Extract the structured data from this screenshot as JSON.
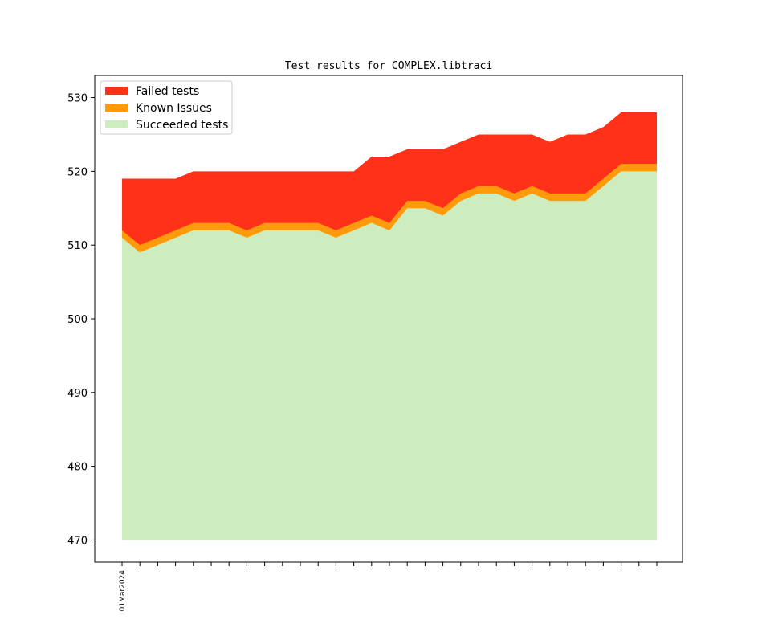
{
  "chart_data": {
    "type": "area",
    "stacked": true,
    "title": "Test results for COMPLEX.libtraci",
    "xlabel": "",
    "ylabel": "",
    "ylim": [
      467,
      533
    ],
    "yticks": [
      470,
      480,
      490,
      500,
      510,
      520,
      530
    ],
    "x_start_label": "01Mar2024",
    "x_count": 31,
    "grid": false,
    "legend_position": "top-left",
    "series": [
      {
        "name": "Failed tests",
        "color": "#ff3219",
        "top": [
          519,
          519,
          519,
          519,
          520,
          520,
          520,
          520,
          520,
          520,
          520,
          520,
          520,
          520,
          522,
          522,
          523,
          523,
          523,
          524,
          525,
          525,
          525,
          525,
          524,
          525,
          525,
          526,
          528,
          528,
          528
        ]
      },
      {
        "name": "Known Issues",
        "color": "#ff9b0a",
        "top": [
          512,
          510,
          511,
          512,
          513,
          513,
          513,
          512,
          513,
          513,
          513,
          513,
          512,
          513,
          514,
          513,
          516,
          516,
          515,
          517,
          518,
          518,
          517,
          518,
          517,
          517,
          517,
          519,
          521,
          521,
          521
        ]
      },
      {
        "name": "Succeeded tests",
        "color": "#cdedbe",
        "top": [
          511,
          509,
          510,
          511,
          512,
          512,
          512,
          511,
          512,
          512,
          512,
          512,
          511,
          512,
          513,
          512,
          515,
          515,
          514,
          516,
          517,
          517,
          516,
          517,
          516,
          516,
          516,
          518,
          520,
          520,
          520
        ]
      }
    ],
    "baseline": 470
  }
}
